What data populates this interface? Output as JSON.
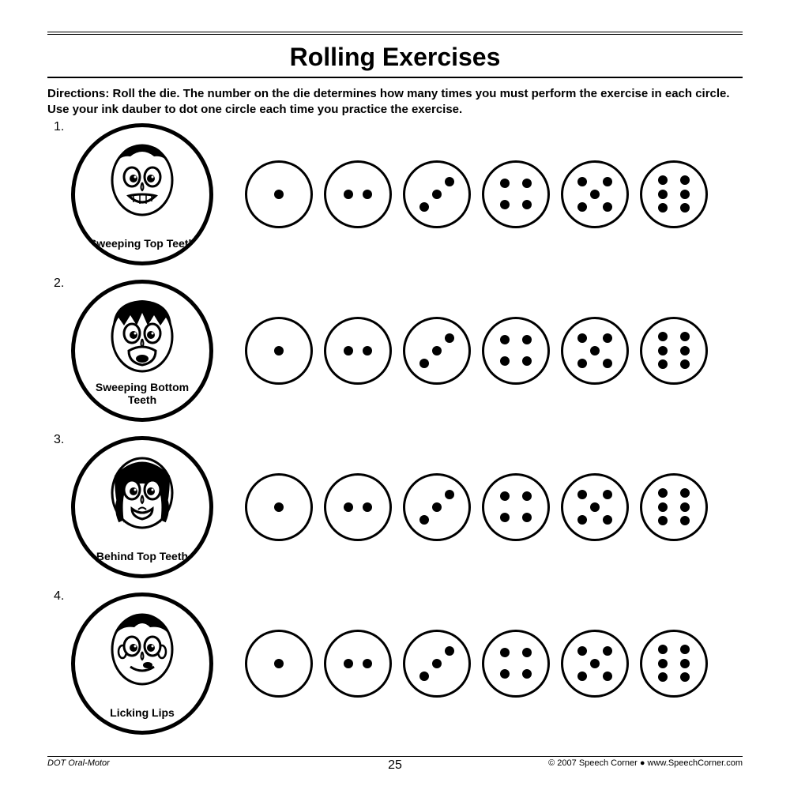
{
  "title": "Rolling Exercises",
  "directions_label": "Directions:",
  "directions_text": "Roll the die.  The number on the die determines how many times you must perform the exercise in each circle.  Use your ink dauber to dot one circle each time you practice the exercise.",
  "exercises": [
    {
      "number": "1.",
      "label": "Sweeping Top Teeth"
    },
    {
      "number": "2.",
      "label": "Sweeping Bottom Teeth"
    },
    {
      "number": "3.",
      "label": "Behind Top Teeth"
    },
    {
      "number": "4.",
      "label": "Licking Lips"
    }
  ],
  "die_faces": [
    1,
    2,
    3,
    4,
    5,
    6
  ],
  "pip_layouts": {
    "1": [
      [
        50,
        50
      ]
    ],
    "2": [
      [
        35,
        50
      ],
      [
        65,
        50
      ]
    ],
    "3": [
      [
        30,
        70
      ],
      [
        50,
        50
      ],
      [
        70,
        30
      ]
    ],
    "4": [
      [
        33,
        33
      ],
      [
        67,
        33
      ],
      [
        33,
        67
      ],
      [
        67,
        67
      ]
    ],
    "5": [
      [
        30,
        30
      ],
      [
        70,
        30
      ],
      [
        50,
        50
      ],
      [
        30,
        70
      ],
      [
        70,
        70
      ]
    ],
    "6": [
      [
        33,
        28
      ],
      [
        67,
        28
      ],
      [
        33,
        50
      ],
      [
        67,
        50
      ],
      [
        33,
        72
      ],
      [
        67,
        72
      ]
    ]
  },
  "footer": {
    "left": "DOT Oral-Motor",
    "page": "25",
    "right": "© 2007 Speech Corner ● www.SpeechCorner.com"
  },
  "colors": {
    "stroke": "#000000",
    "background": "#ffffff"
  }
}
